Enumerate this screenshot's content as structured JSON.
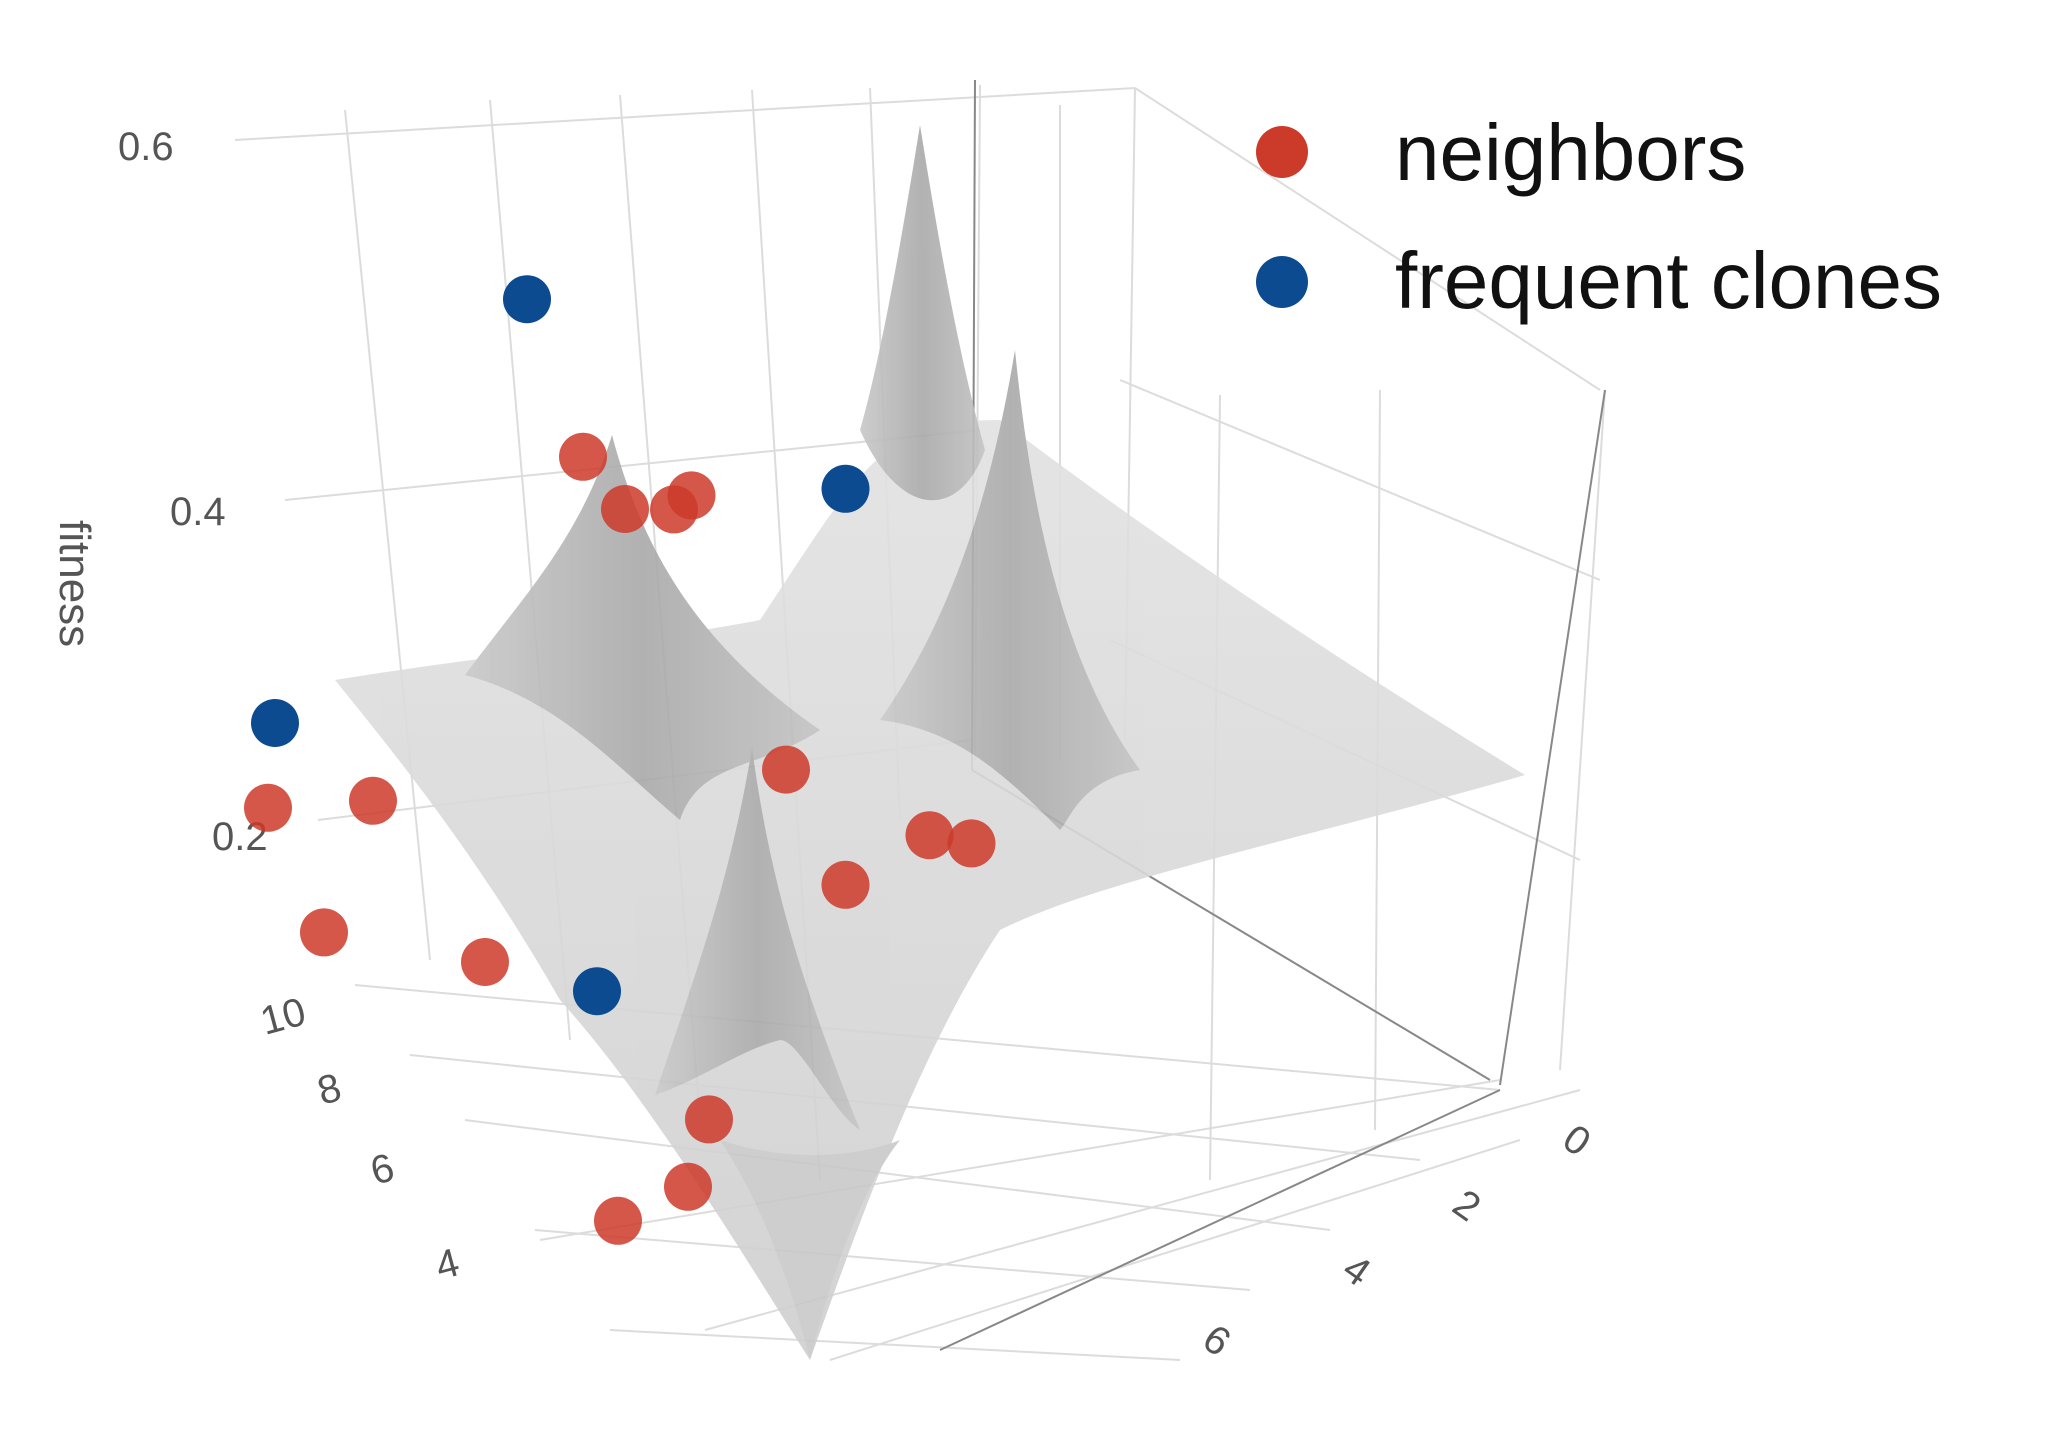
{
  "chart_data": {
    "type": "scatter",
    "subtype": "3d-surface-with-markers",
    "zlabel": "fitness",
    "xlabel": "",
    "ylabel": "",
    "z_ticks": [
      "0.2",
      "0.4",
      "0.6"
    ],
    "y_ticks": [
      "4",
      "6",
      "8",
      "10"
    ],
    "x_ticks": [
      "0",
      "2",
      "4",
      "6"
    ],
    "zlim": [
      0.1,
      0.6
    ],
    "legend_position": "top-right",
    "surface_color": "#bdbdbd",
    "series": [
      {
        "name": "neighbors",
        "color": "#cc3a2a",
        "points": [
          {
            "x": 5.2,
            "y": 9.8,
            "z": 0.36
          },
          {
            "x": 4.6,
            "y": 9.2,
            "z": 0.35
          },
          {
            "x": 5.2,
            "y": 9.0,
            "z": 0.27
          },
          {
            "x": 4.2,
            "y": 8.2,
            "z": 0.21
          },
          {
            "x": 2.0,
            "y": 9.5,
            "z": 0.46
          },
          {
            "x": 2.2,
            "y": 9.8,
            "z": 0.51
          },
          {
            "x": 1.6,
            "y": 9.4,
            "z": 0.44
          },
          {
            "x": 1.3,
            "y": 9.6,
            "z": 0.43
          },
          {
            "x": 1.8,
            "y": 7.5,
            "z": 0.27
          },
          {
            "x": 1.7,
            "y": 6.8,
            "z": 0.18
          },
          {
            "x": 0.9,
            "y": 6.8,
            "z": 0.18
          },
          {
            "x": 0.7,
            "y": 6.5,
            "z": 0.17
          },
          {
            "x": 5.2,
            "y": 4.8,
            "z": 0.13
          },
          {
            "x": 4.6,
            "y": 4.7,
            "z": 0.13
          },
          {
            "x": 4.0,
            "y": 5.3,
            "z": 0.14
          }
        ]
      },
      {
        "name": "frequent clones",
        "color": "#0d4b91",
        "points": [
          {
            "x": 5.0,
            "y": 10.0,
            "z": 0.42
          },
          {
            "x": 2.2,
            "y": 10.6,
            "z": 0.63
          },
          {
            "x": 0.9,
            "y": 8.0,
            "z": 0.46
          },
          {
            "x": 4.6,
            "y": 6.0,
            "z": 0.27
          }
        ]
      }
    ]
  }
}
